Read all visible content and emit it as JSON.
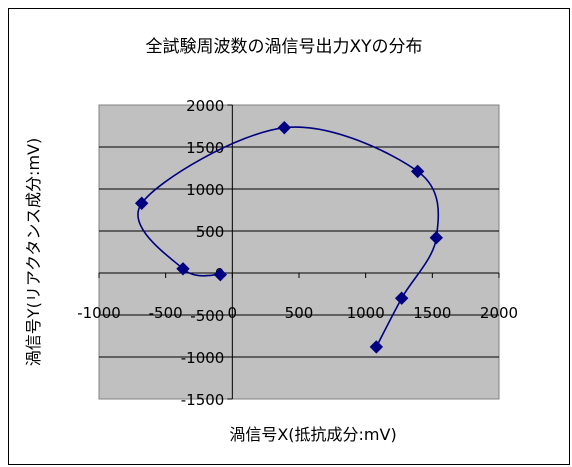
{
  "chart_data": {
    "type": "scatter",
    "title": "全試験周波数の渦信号出力XYの分布",
    "xlabel": "渦信号X(抵抗成分:mV)",
    "ylabel": "渦信号Y(リアクタンス成分:mV)",
    "xlim": [
      -1000,
      2000
    ],
    "ylim": [
      -1500,
      2000
    ],
    "x_ticks": [
      "-1000",
      "-500",
      "0",
      "500",
      "1000",
      "1500",
      "2000"
    ],
    "x_tick_values": [
      -1000,
      -500,
      0,
      500,
      1000,
      1500,
      2000
    ],
    "y_ticks": [
      "2000",
      "1500",
      "1000",
      "500",
      "0",
      "-500",
      "-1000",
      "-1500"
    ],
    "y_tick_values": [
      2000,
      1500,
      1000,
      500,
      0,
      -500,
      -1000,
      -1500
    ],
    "grid": true,
    "legend": "none",
    "series": [
      {
        "points": [
          {
            "x": 1080,
            "y": -880
          },
          {
            "x": 1270,
            "y": -300
          },
          {
            "x": 1530,
            "y": 420
          },
          {
            "x": 1390,
            "y": 1210
          },
          {
            "x": 390,
            "y": 1730
          },
          {
            "x": -680,
            "y": 830
          },
          {
            "x": -370,
            "y": 50
          },
          {
            "x": -90,
            "y": -20
          }
        ],
        "color": "#000080"
      }
    ],
    "colors": {
      "plot_background": "#c0c0c0",
      "gridline": "#000000",
      "series": "#000080"
    }
  }
}
